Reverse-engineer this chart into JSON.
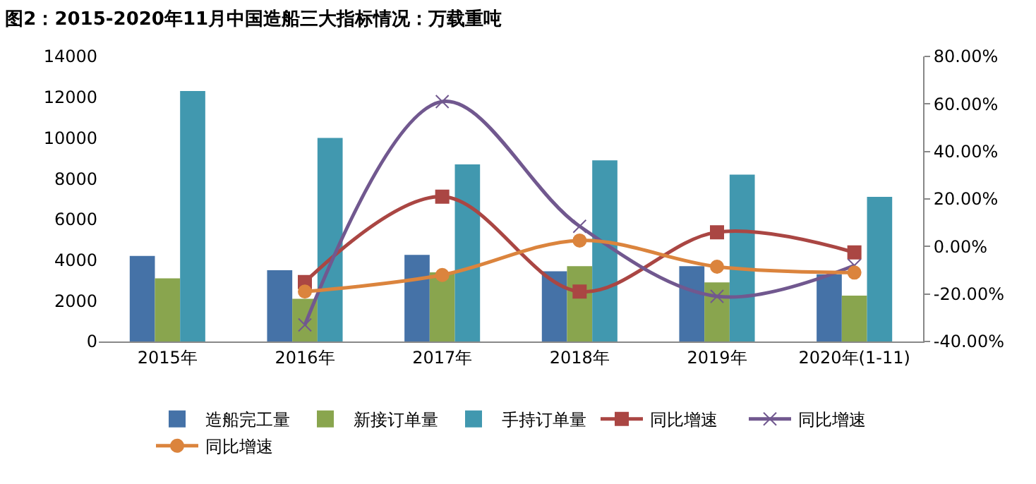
{
  "chart_data": {
    "type": "bar",
    "title": "图2：2015-2020年11月中国造船三大指标情况：万载重吨",
    "categories": [
      "2015年",
      "2016年",
      "2017年",
      "2018年",
      "2019年",
      "2020年(1-11)"
    ],
    "series": [
      {
        "name": "造船完工量",
        "color": "#4572a7",
        "values": [
          4200,
          3500,
          4250,
          3450,
          3700,
          3300
        ]
      },
      {
        "name": "新接订单量",
        "color": "#89a54e",
        "values": [
          3100,
          2100,
          3400,
          3700,
          2900,
          2250
        ]
      },
      {
        "name": "手持订单量",
        "color": "#4198af",
        "values": [
          12300,
          10000,
          8700,
          8900,
          8200,
          7100
        ]
      },
      {
        "name": "同比增速",
        "type": "line",
        "axis": "y2",
        "marker": "square",
        "color": "#aa4643",
        "values": [
          null,
          -15,
          21,
          -19,
          6,
          -2.5
        ]
      },
      {
        "name": "同比增速",
        "type": "line",
        "axis": "y2",
        "marker": "cross",
        "color": "#71588f",
        "values": [
          null,
          -33,
          61,
          8.5,
          -21,
          -8
        ]
      },
      {
        "name": "同比增速",
        "type": "line",
        "axis": "y2",
        "marker": "circle",
        "color": "#db843d",
        "values": [
          null,
          -19,
          -12,
          2.5,
          -8.5,
          -11
        ]
      }
    ],
    "ylim": [
      0,
      14000
    ],
    "yticks": [
      0,
      2000,
      4000,
      6000,
      8000,
      10000,
      12000,
      14000
    ],
    "y2lim": [
      -40,
      80
    ],
    "y2ticks": [
      {
        "value": -40,
        "label": "-40.00%"
      },
      {
        "value": -20,
        "label": "-20.00%"
      },
      {
        "value": 0,
        "label": "0.00%"
      },
      {
        "value": 20,
        "label": "20.00%"
      },
      {
        "value": 40,
        "label": "40.00%"
      },
      {
        "value": 60,
        "label": "60.00%"
      },
      {
        "value": 80,
        "label": "80.00%"
      }
    ],
    "legend": "bottom"
  }
}
